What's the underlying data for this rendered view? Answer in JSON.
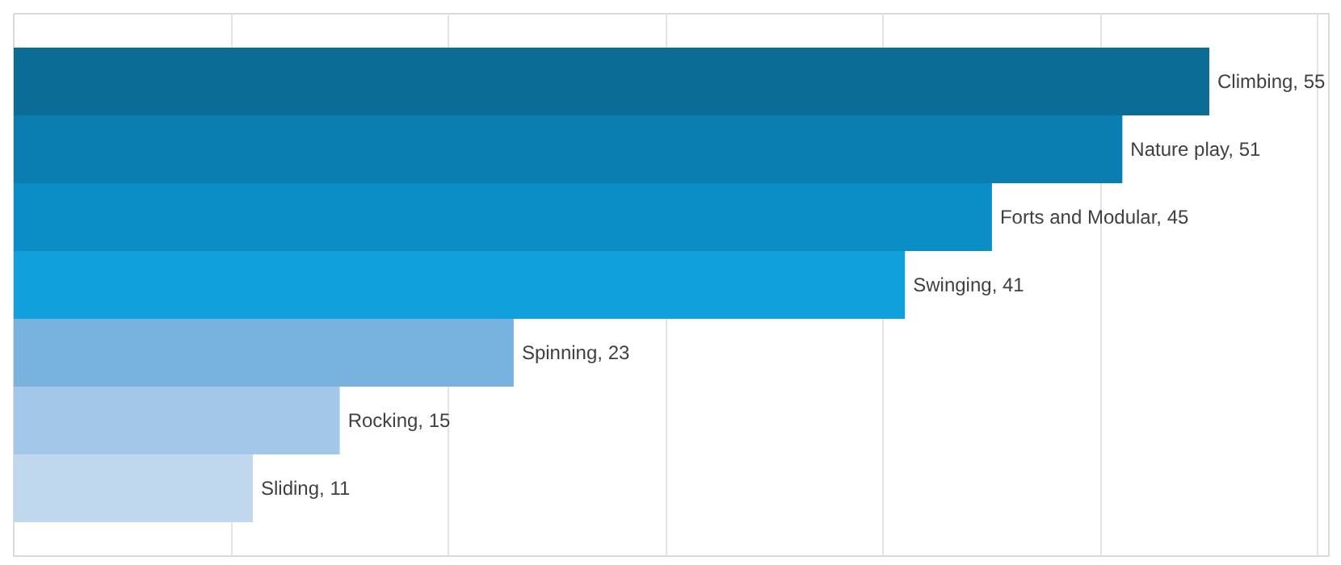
{
  "chart_data": {
    "type": "bar",
    "orientation": "horizontal",
    "categories": [
      null,
      null,
      null,
      null,
      null,
      null,
      null
    ],
    "values": [
      55,
      51,
      45,
      41,
      23,
      15,
      11
    ],
    "value_labels": [
      "Climbing, 55",
      "Nature play, 51",
      "Forts and Modular, 45",
      "Swinging, 41",
      "Spinning, 23",
      "Rocking, 15",
      "Sliding, 11"
    ],
    "colors": [
      "#0b6d96",
      "#0a7eb0",
      "#0b8dc6",
      "#10a0dc",
      "#78b3df",
      "#a2c7e8",
      "#c0d8ee"
    ],
    "tick_labels": false,
    "grid": "x"
  }
}
